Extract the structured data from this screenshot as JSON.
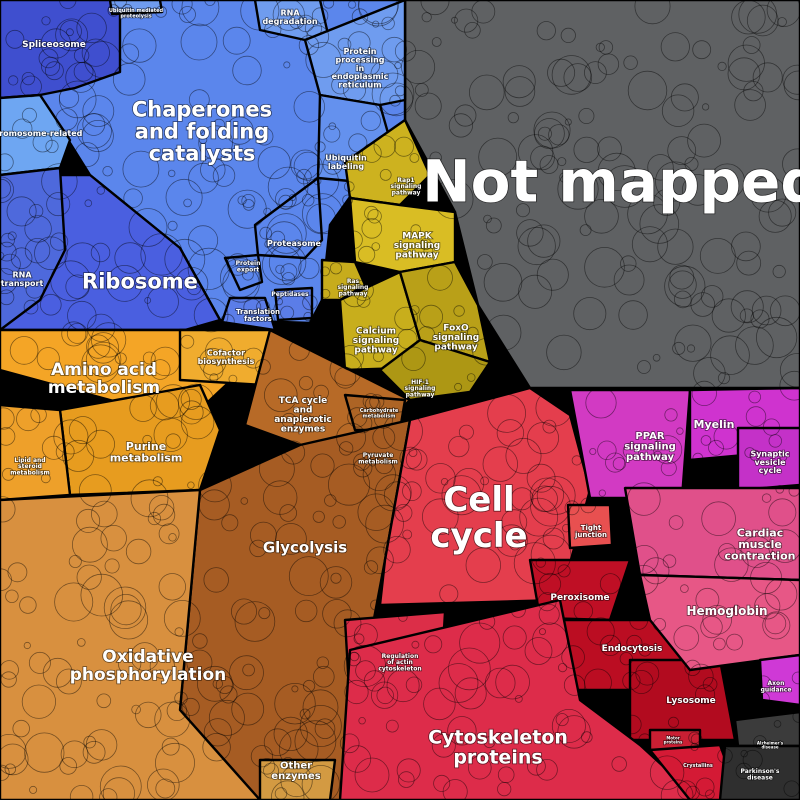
{
  "chart_data": {
    "type": "voronoi-treemap",
    "title": "",
    "groups": [
      {
        "name": "Not mapped",
        "color": "#5f6163",
        "font": 58
      },
      {
        "name": "Chaperones and folding catalysts",
        "color": "#5b86ec",
        "font": 21
      },
      {
        "name": "Ribosome",
        "color": "#4a5fe0",
        "font": 21
      },
      {
        "name": "Spliceosome",
        "color": "#3f4fcf",
        "font": 9
      },
      {
        "name": "Chromosome-related",
        "color": "#6ea6f2",
        "font": 8
      },
      {
        "name": "RNA transport",
        "color": "#4e69dc",
        "font": 8
      },
      {
        "name": "RNA degradation",
        "color": "#6f9cef",
        "font": 8
      },
      {
        "name": "Protein processing in endoplasmic reticulum",
        "color": "#6f9cef",
        "font": 8
      },
      {
        "name": "Ubiquitin labeling",
        "color": "#6491ee",
        "font": 8
      },
      {
        "name": "Proteasome",
        "color": "#5b86ec",
        "font": 8
      },
      {
        "name": "Protein export",
        "color": "#5b86ec",
        "font": 6
      },
      {
        "name": "Translation factors",
        "color": "#5b7de8",
        "font": 7
      },
      {
        "name": "Peptidases",
        "color": "#5b7de8",
        "font": 6
      },
      {
        "name": "Ubiquitin mediated proteolysis",
        "color": "#6f9cef",
        "font": 5
      },
      {
        "name": "Rap1 signaling pathway",
        "color": "#cdb21f",
        "font": 6
      },
      {
        "name": "MAPK signaling pathway",
        "color": "#d9bd24",
        "font": 9
      },
      {
        "name": "Ras signaling pathway",
        "color": "#c7ac1c",
        "font": 6
      },
      {
        "name": "Calcium signaling pathway",
        "color": "#c8ae1c",
        "font": 9
      },
      {
        "name": "FoxO signaling pathway",
        "color": "#b9a018",
        "font": 9
      },
      {
        "name": "HIF-1 signaling pathway",
        "color": "#ad9714",
        "font": 6
      },
      {
        "name": "Amino acid metabolism",
        "color": "#f4a526",
        "font": 17
      },
      {
        "name": "Cofactor biosynthesis",
        "color": "#f0ac2e",
        "font": 8
      },
      {
        "name": "Purine metabolism",
        "color": "#e79c1f",
        "font": 11
      },
      {
        "name": "Lipid and steroid metabolism",
        "color": "#eea02a",
        "font": 6
      },
      {
        "name": "TCA cycle and anaplerotic enzymes",
        "color": "#b76a27",
        "font": 9
      },
      {
        "name": "Carbohydrate metabolism",
        "color": "#ad6425",
        "font": 5
      },
      {
        "name": "Pyruvate metabolism",
        "color": "#b06526",
        "font": 6
      },
      {
        "name": "Glycolysis",
        "color": "#a65c23",
        "font": 15
      },
      {
        "name": "Oxidative phosphorylation",
        "color": "#d8903f",
        "font": 17
      },
      {
        "name": "Other enzymes",
        "color": "#d39a42",
        "font": 10
      },
      {
        "name": "Cell cycle",
        "color": "#e43e4d",
        "font": 34
      },
      {
        "name": "Tight junction",
        "color": "#e85050",
        "font": 7
      },
      {
        "name": "Peroxisome",
        "color": "#bf0f25",
        "font": 9
      },
      {
        "name": "Endocytosis",
        "color": "#bb0d22",
        "font": 9
      },
      {
        "name": "Lysosome",
        "color": "#b20b1f",
        "font": 9
      },
      {
        "name": "Regulation of actin cytoskeleton",
        "color": "#dc2e48",
        "font": 6
      },
      {
        "name": "Cytoskeleton proteins",
        "color": "#dd2c4a",
        "font": 19
      },
      {
        "name": "Motor proteins",
        "color": "#c91f33",
        "font": 4
      },
      {
        "name": "Crystallins",
        "color": "#d41a35",
        "font": 5
      },
      {
        "name": "PPAR signaling pathway",
        "color": "#d23ac3",
        "font": 10
      },
      {
        "name": "Myelin",
        "color": "#cf33cf",
        "font": 11
      },
      {
        "name": "Synaptic vesicle cycle",
        "color": "#c431c8",
        "font": 8
      },
      {
        "name": "Cardiac muscle contraction",
        "color": "#e0508a",
        "font": 11
      },
      {
        "name": "Hemoglobin",
        "color": "#e75786",
        "font": 12
      },
      {
        "name": "Axon guidance",
        "color": "#cf39d6",
        "font": 6
      },
      {
        "name": "Alzheimer's disease",
        "color": "#3b3b3b",
        "font": 4
      },
      {
        "name": "Parkinson's disease",
        "color": "#2f2f2f",
        "font": 6
      }
    ]
  }
}
